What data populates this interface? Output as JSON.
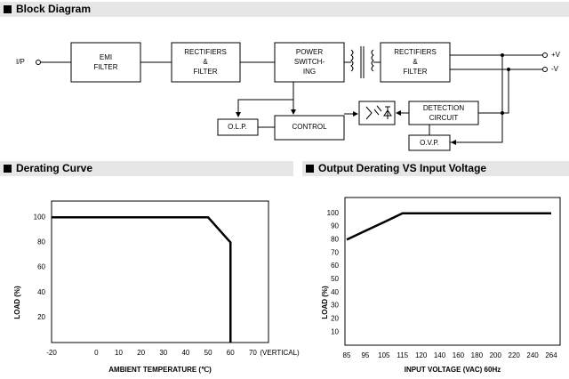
{
  "block_diagram": {
    "title": "Block Diagram",
    "input": "I/P",
    "outputs": [
      "+V",
      "-V"
    ],
    "nodes": [
      {
        "lines": [
          "EMI",
          "FILTER"
        ]
      },
      {
        "lines": [
          "RECTIFIERS",
          "&",
          "FILTER"
        ]
      },
      {
        "lines": [
          "POWER",
          "SWITCH-",
          "ING"
        ]
      },
      {
        "lines": [
          "RECTIFIERS",
          "&",
          "FILTER"
        ]
      },
      {
        "lines": [
          "O.L.P."
        ]
      },
      {
        "lines": [
          "CONTROL"
        ]
      },
      {
        "lines": [
          "DETECTION",
          "CIRCUIT"
        ]
      },
      {
        "lines": [
          "O.V.P."
        ]
      }
    ]
  },
  "chart_data": [
    {
      "type": "line",
      "title": "Derating Curve",
      "x_label": "AMBIENT TEMPERATURE (℃)",
      "y_label": "LOAD (%)",
      "x": [
        -20,
        50,
        60,
        60
      ],
      "values": [
        100,
        100,
        80,
        0
      ],
      "color": "#000000",
      "xlim": [
        -20,
        77
      ],
      "xticks": [
        -20,
        0,
        10,
        20,
        30,
        40,
        50,
        60,
        70
      ],
      "x_note": "(VERTICAL)",
      "ylim": [
        0,
        113
      ],
      "yticks": [
        20,
        40,
        60,
        80,
        100
      ]
    },
    {
      "type": "line",
      "title": "Output Derating VS Input Voltage",
      "x_label": "INPUT VOLTAGE (VAC) 60Hz",
      "y_label": "LOAD (%)",
      "categories": [
        "85",
        "95",
        "105",
        "115",
        "120",
        "140",
        "160",
        "180",
        "200",
        "220",
        "240",
        "264"
      ],
      "values": [
        80,
        86.7,
        93.3,
        100,
        100,
        100,
        100,
        100,
        100,
        100,
        100,
        100
      ],
      "color": "#000000",
      "ylim": [
        0,
        112
      ],
      "yticks": [
        10,
        20,
        30,
        40,
        50,
        60,
        70,
        80,
        90,
        100
      ]
    }
  ]
}
